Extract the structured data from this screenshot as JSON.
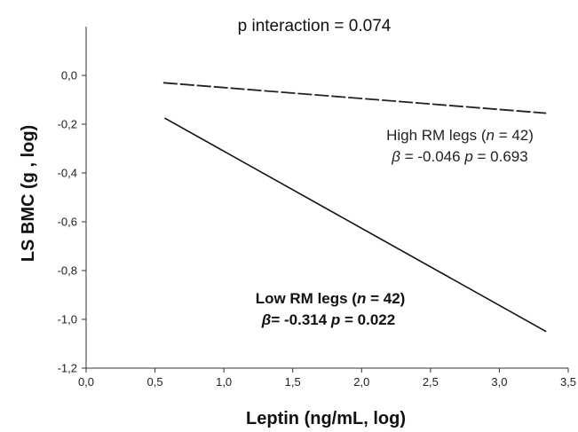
{
  "chart_data": {
    "type": "line",
    "title": "p interaction = 0.074",
    "xlabel": "Leptin (ng/mL, log)",
    "ylabel": "LS BMC (g , log)",
    "xlim": [
      0.0,
      3.5
    ],
    "ylim": [
      -1.2,
      0.2
    ],
    "x_ticks": [
      {
        "value": 0.0,
        "label": "0,0"
      },
      {
        "value": 0.5,
        "label": "0,5"
      },
      {
        "value": 1.0,
        "label": "1,0"
      },
      {
        "value": 1.5,
        "label": "1,5"
      },
      {
        "value": 2.0,
        "label": "2,0"
      },
      {
        "value": 2.5,
        "label": "2,5"
      },
      {
        "value": 3.0,
        "label": "3,0"
      },
      {
        "value": 3.5,
        "label": "3,5"
      }
    ],
    "y_ticks": [
      {
        "value": 0.0,
        "label": "0,0"
      },
      {
        "value": -0.2,
        "label": "-0,2"
      },
      {
        "value": -0.4,
        "label": "-0,4"
      },
      {
        "value": -0.6,
        "label": "-0,6"
      },
      {
        "value": -0.8,
        "label": "-0,8"
      },
      {
        "value": -1.0,
        "label": "-1,0"
      },
      {
        "value": -1.2,
        "label": "-1,2"
      }
    ],
    "grid": false,
    "legend": "none",
    "series": [
      {
        "key": "high_rm",
        "x": [
          0.56,
          3.34
        ],
        "y": [
          -0.03,
          -0.155
        ],
        "style": "dashed",
        "color": "#222222"
      },
      {
        "key": "low_rm",
        "x": [
          0.57,
          3.34
        ],
        "y": [
          -0.175,
          -1.05
        ],
        "style": "solid",
        "color": "#111111"
      }
    ],
    "annotations": {
      "high": {
        "label_pre": "High RM legs (",
        "label_n": "n",
        "label_post": " = 42)",
        "beta_sym": "β",
        "beta_text": " = -0.046 ",
        "p_sym": "p",
        "p_text": " = 0.693"
      },
      "low": {
        "label_pre": "Low RM legs (",
        "label_n": "n",
        "label_post": " = 42)",
        "beta_sym": "β",
        "beta_text": "= -0.314 ",
        "p_sym": "p",
        "p_text": " = 0.022"
      }
    }
  }
}
